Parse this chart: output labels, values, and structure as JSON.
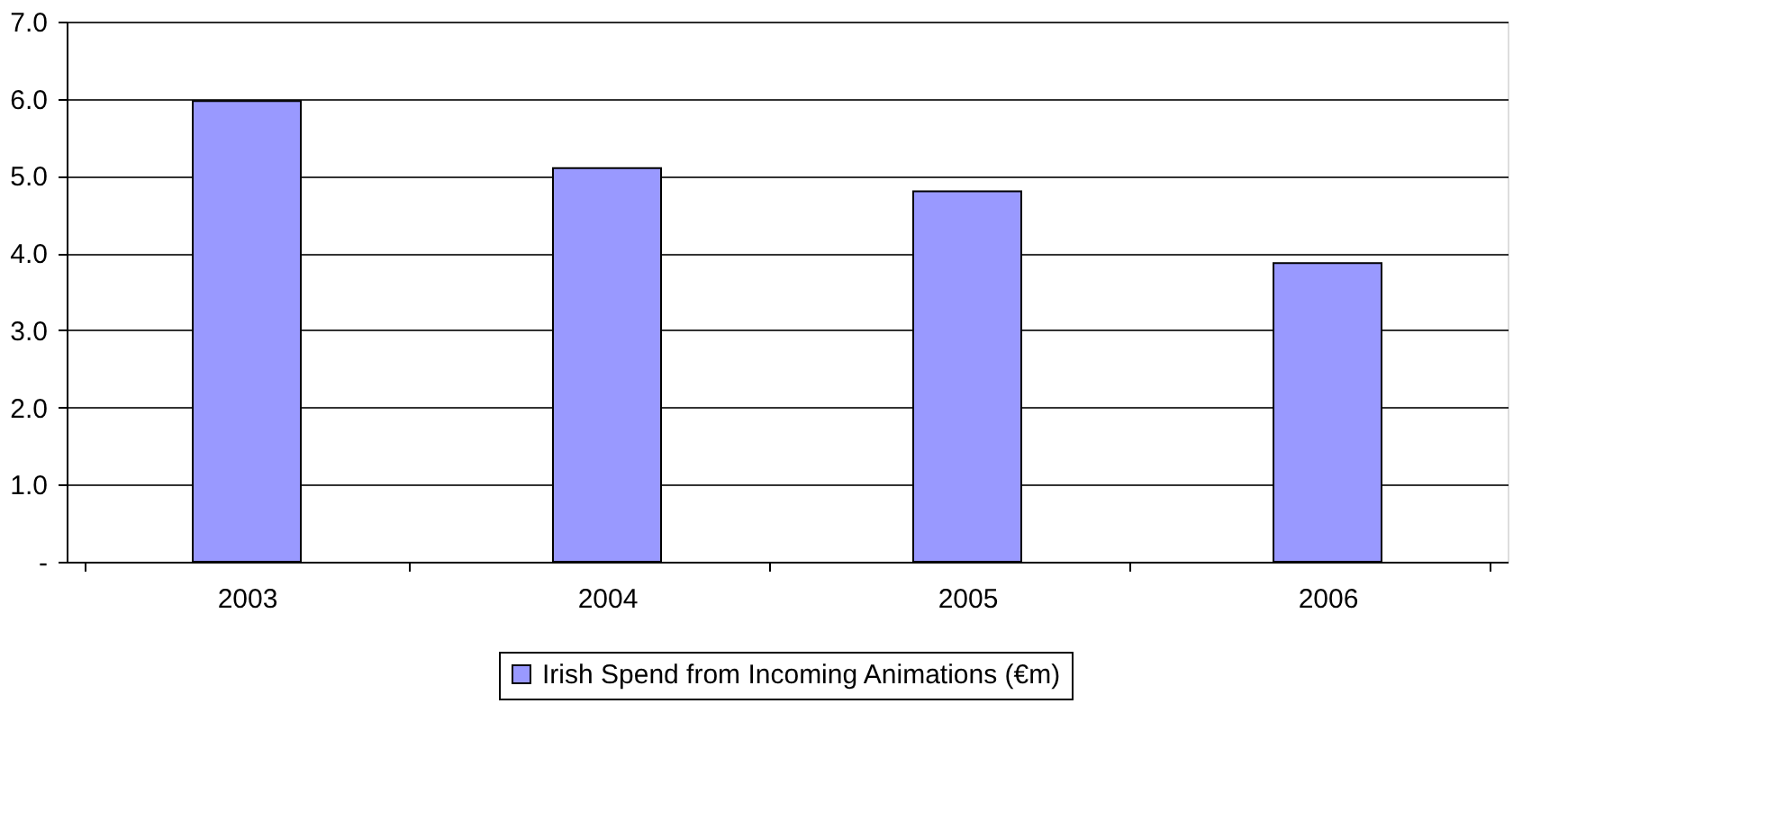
{
  "chart_data": {
    "type": "bar",
    "categories": [
      "2003",
      "2004",
      "2005",
      "2006"
    ],
    "series": [
      {
        "name": "Irish Spend from Incoming Animations (€m)",
        "color": "#9999ff",
        "values": [
          5.97,
          5.1,
          4.8,
          3.87
        ]
      }
    ],
    "ylim": [
      0,
      7
    ],
    "yticks": [
      {
        "value": 0,
        "label": "-"
      },
      {
        "value": 1,
        "label": "1.0"
      },
      {
        "value": 2,
        "label": "2.0"
      },
      {
        "value": 3,
        "label": "3.0"
      },
      {
        "value": 4,
        "label": "4.0"
      },
      {
        "value": 5,
        "label": "5.0"
      },
      {
        "value": 6,
        "label": "6.0"
      },
      {
        "value": 7,
        "label": "7.0"
      }
    ],
    "grid": "y",
    "legend": "bottom"
  }
}
